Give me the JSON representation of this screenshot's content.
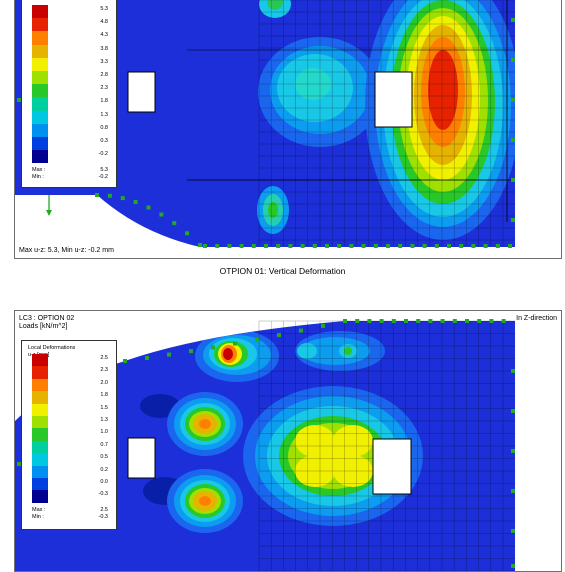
{
  "panel1": {
    "legend": {
      "swatches": [
        "#c80000",
        "#e62200",
        "#ff8000",
        "#e6b400",
        "#f0f000",
        "#a0e000",
        "#28c828",
        "#00d0a0",
        "#00c8e0",
        "#0090f0",
        "#0040e0",
        "#000090"
      ],
      "levels": [
        "5.3",
        "4.8",
        "4.3",
        "3.8",
        "3.3",
        "2.8",
        "2.3",
        "1.8",
        "1.3",
        "0.8",
        "0.3",
        "-0.2"
      ],
      "max_label": "Max :",
      "min_label": "Min :",
      "max_value": "5.3",
      "min_value": "-0.2"
    },
    "status": "Max u-z: 5.3, Min u-z: -0.2 mm"
  },
  "caption1": "OTPION 01: Vertical Deformation",
  "panel2": {
    "header_line1": "LC3 : OPTION 02",
    "header_line2": "Loads [kN/m^2]",
    "direction": "In Z-direction",
    "legend": {
      "title_line1": "Local Deformations",
      "title_line2": "u-z [mm]",
      "swatches": [
        "#c80000",
        "#e62200",
        "#ff8000",
        "#e6b400",
        "#f0f000",
        "#a0e000",
        "#28c828",
        "#00d0a0",
        "#00c8e0",
        "#0090f0",
        "#0040e0",
        "#000090"
      ],
      "levels": [
        "2.5",
        "2.3",
        "2.0",
        "1.8",
        "1.5",
        "1.3",
        "1.0",
        "0.7",
        "0.5",
        "0.2",
        "0.0",
        "-0.3"
      ],
      "max_label": "Max :",
      "min_label": "Min :",
      "max_value": "2.5",
      "min_value": "-0.3"
    }
  }
}
